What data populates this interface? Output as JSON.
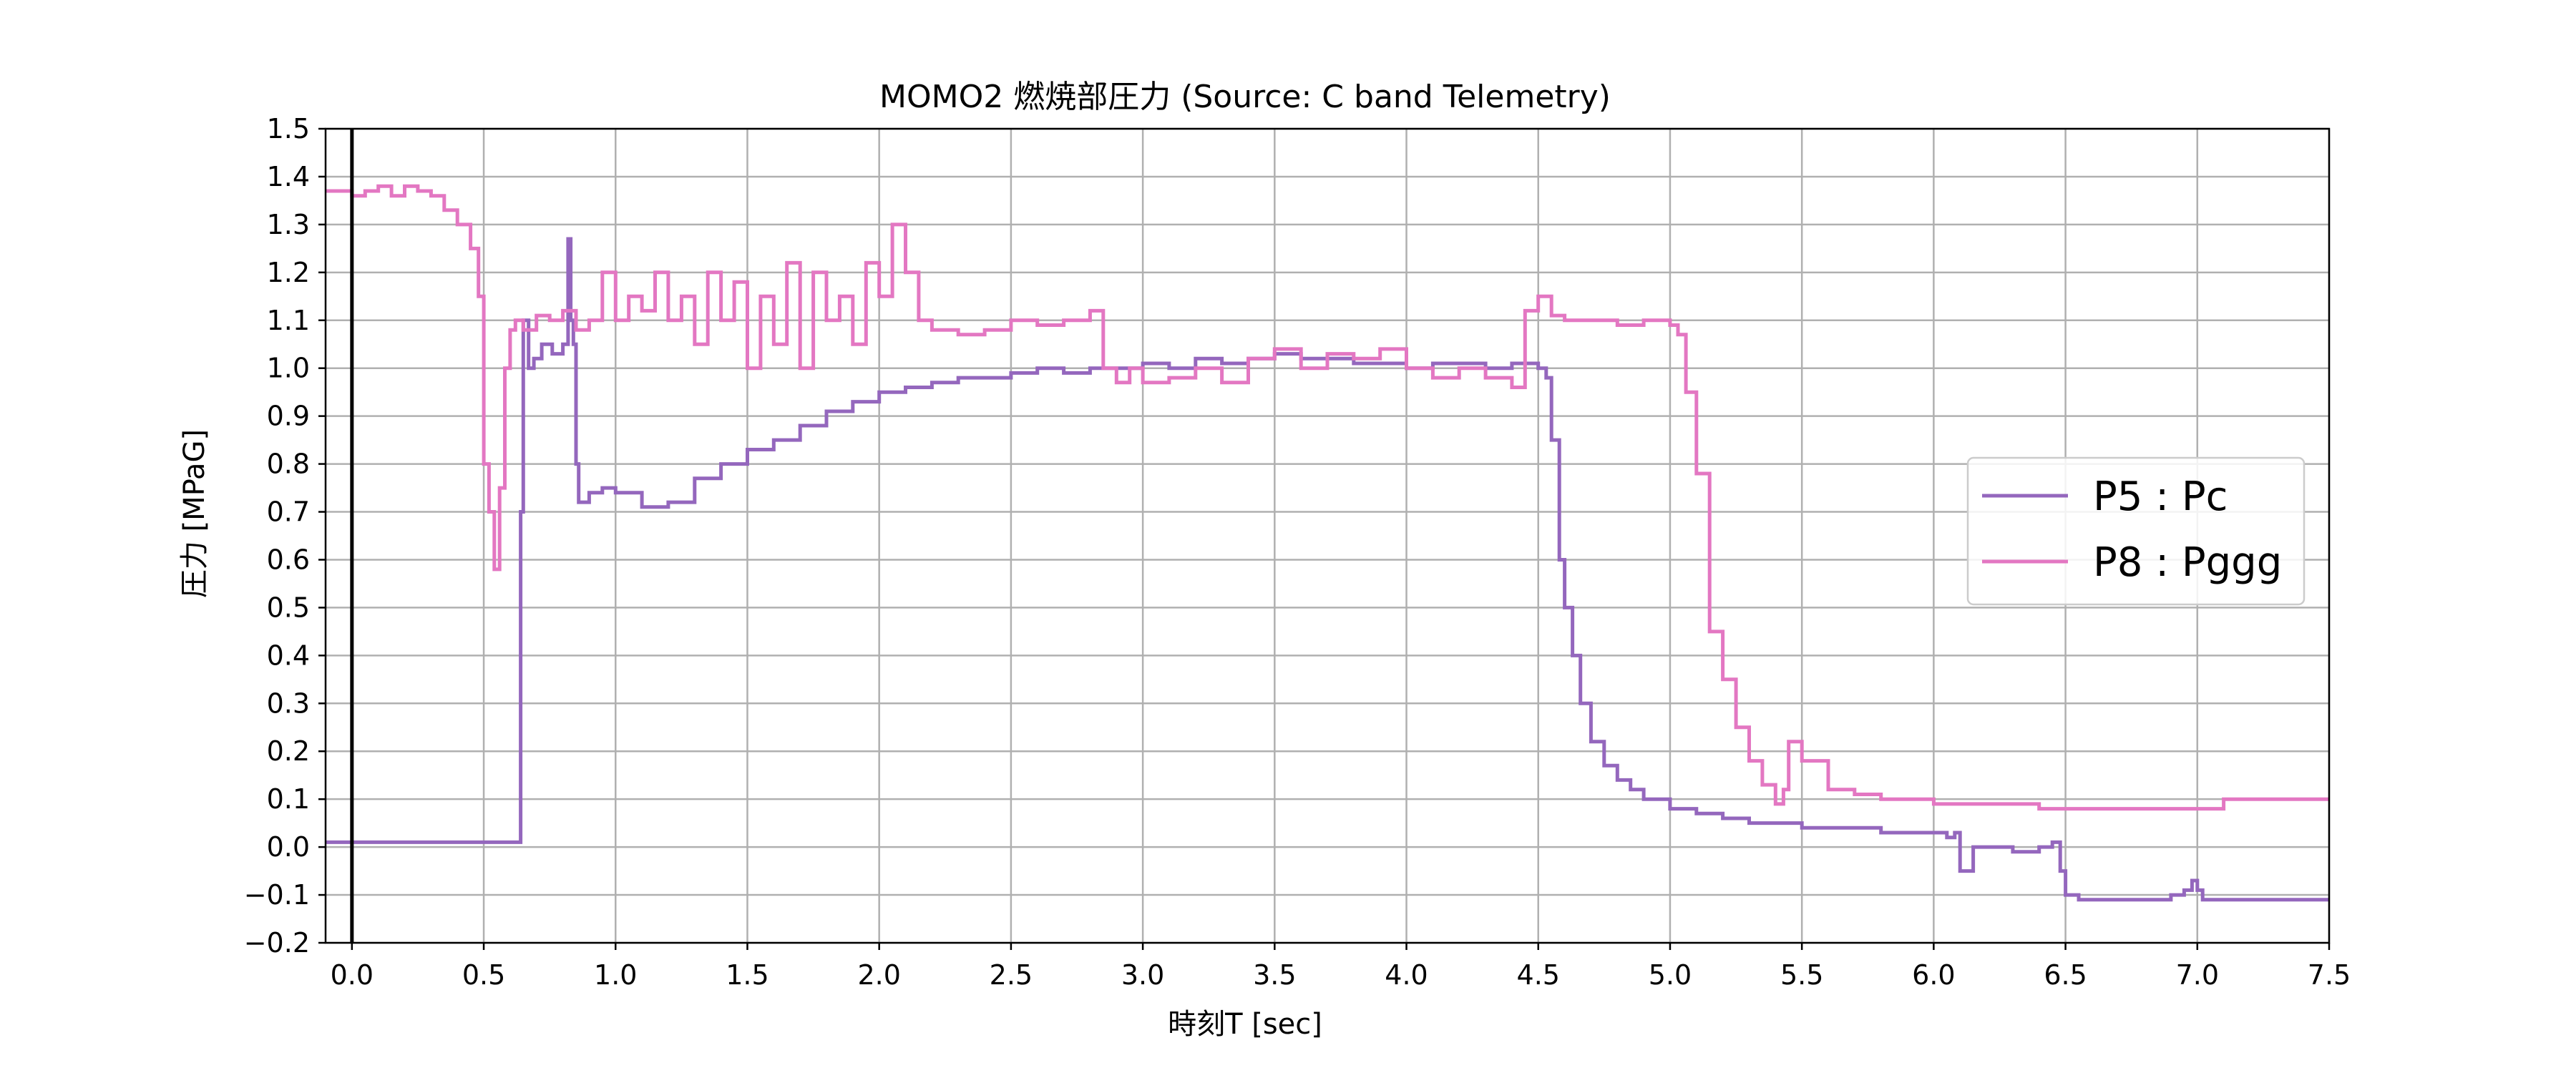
{
  "chart_data": {
    "type": "line",
    "title": "MOMO2 燃焼部圧力 (Source: C band Telemetry)",
    "xlabel": "時刻T [sec]",
    "ylabel": "圧力 [MPaG]",
    "xlim": [
      -0.1,
      7.5
    ],
    "ylim": [
      -0.2,
      1.5
    ],
    "xticks": [
      "0.0",
      "0.5",
      "1.0",
      "1.5",
      "2.0",
      "2.5",
      "3.0",
      "3.5",
      "4.0",
      "4.5",
      "5.0",
      "5.5",
      "6.0",
      "6.5",
      "7.0",
      "7.5"
    ],
    "yticks": [
      "−0.2",
      "−0.1",
      "0.0",
      "0.1",
      "0.2",
      "0.3",
      "0.4",
      "0.5",
      "0.6",
      "0.7",
      "0.8",
      "0.9",
      "1.0",
      "1.1",
      "1.2",
      "1.3",
      "1.4",
      "1.5"
    ],
    "grid": true,
    "vline_x": 0.0,
    "legend_position": "center-right",
    "series": [
      {
        "name": "P5 : Pc",
        "color": "#9467bd",
        "x": [
          -0.1,
          0.6,
          0.63,
          0.64,
          0.65,
          0.67,
          0.69,
          0.72,
          0.76,
          0.8,
          0.82,
          0.83,
          0.84,
          0.85,
          0.86,
          0.9,
          0.95,
          1.0,
          1.1,
          1.2,
          1.3,
          1.4,
          1.5,
          1.6,
          1.7,
          1.8,
          1.9,
          2.0,
          2.1,
          2.2,
          2.3,
          2.4,
          2.5,
          2.6,
          2.7,
          2.8,
          2.9,
          3.0,
          3.1,
          3.2,
          3.3,
          3.4,
          3.5,
          3.6,
          3.7,
          3.8,
          3.9,
          4.0,
          4.1,
          4.2,
          4.3,
          4.4,
          4.5,
          4.53,
          4.55,
          4.58,
          4.6,
          4.63,
          4.66,
          4.7,
          4.75,
          4.8,
          4.85,
          4.9,
          5.0,
          5.1,
          5.2,
          5.3,
          5.4,
          5.5,
          5.6,
          5.7,
          5.8,
          5.9,
          6.0,
          6.05,
          6.08,
          6.1,
          6.15,
          6.2,
          6.3,
          6.4,
          6.45,
          6.48,
          6.5,
          6.55,
          6.6,
          6.7,
          6.8,
          6.9,
          6.95,
          6.98,
          7.0,
          7.02,
          7.1,
          7.5
        ],
        "y": [
          0.01,
          0.01,
          0.01,
          0.7,
          1.1,
          1.0,
          1.02,
          1.05,
          1.03,
          1.05,
          1.27,
          1.1,
          1.05,
          0.8,
          0.72,
          0.74,
          0.75,
          0.74,
          0.71,
          0.72,
          0.77,
          0.8,
          0.83,
          0.85,
          0.88,
          0.91,
          0.93,
          0.95,
          0.96,
          0.97,
          0.98,
          0.98,
          0.99,
          1.0,
          0.99,
          1.0,
          1.0,
          1.01,
          1.0,
          1.02,
          1.01,
          1.02,
          1.03,
          1.02,
          1.02,
          1.01,
          1.01,
          1.0,
          1.01,
          1.01,
          1.0,
          1.01,
          1.0,
          0.98,
          0.85,
          0.6,
          0.5,
          0.4,
          0.3,
          0.22,
          0.17,
          0.14,
          0.12,
          0.1,
          0.08,
          0.07,
          0.06,
          0.05,
          0.05,
          0.04,
          0.04,
          0.04,
          0.03,
          0.03,
          0.03,
          0.02,
          0.03,
          -0.05,
          0.0,
          0.0,
          -0.01,
          0.0,
          0.01,
          -0.05,
          -0.1,
          -0.11,
          -0.11,
          -0.11,
          -0.11,
          -0.1,
          -0.09,
          -0.07,
          -0.09,
          -0.11,
          -0.11,
          -0.11
        ]
      },
      {
        "name": "P8 : Pggg",
        "color": "#e377c2",
        "x": [
          -0.1,
          0.0,
          0.05,
          0.1,
          0.15,
          0.2,
          0.25,
          0.3,
          0.35,
          0.4,
          0.45,
          0.48,
          0.5,
          0.52,
          0.54,
          0.56,
          0.58,
          0.6,
          0.62,
          0.65,
          0.7,
          0.75,
          0.8,
          0.85,
          0.9,
          0.95,
          1.0,
          1.05,
          1.1,
          1.15,
          1.2,
          1.25,
          1.3,
          1.35,
          1.4,
          1.45,
          1.5,
          1.55,
          1.6,
          1.65,
          1.7,
          1.75,
          1.8,
          1.85,
          1.9,
          1.95,
          2.0,
          2.05,
          2.1,
          2.15,
          2.2,
          2.3,
          2.4,
          2.5,
          2.6,
          2.7,
          2.8,
          2.85,
          2.9,
          2.95,
          3.0,
          3.1,
          3.2,
          3.3,
          3.4,
          3.5,
          3.6,
          3.7,
          3.8,
          3.9,
          4.0,
          4.1,
          4.2,
          4.3,
          4.4,
          4.45,
          4.5,
          4.55,
          4.6,
          4.7,
          4.8,
          4.9,
          5.0,
          5.03,
          5.06,
          5.1,
          5.15,
          5.2,
          5.25,
          5.3,
          5.35,
          5.4,
          5.43,
          5.45,
          5.5,
          5.6,
          5.7,
          5.8,
          5.9,
          6.0,
          6.2,
          6.4,
          6.6,
          6.8,
          7.0,
          7.1,
          7.5
        ],
        "y": [
          1.37,
          1.36,
          1.37,
          1.38,
          1.36,
          1.38,
          1.37,
          1.36,
          1.33,
          1.3,
          1.25,
          1.15,
          0.8,
          0.7,
          0.58,
          0.75,
          1.0,
          1.08,
          1.1,
          1.08,
          1.11,
          1.1,
          1.12,
          1.08,
          1.1,
          1.2,
          1.1,
          1.15,
          1.12,
          1.2,
          1.1,
          1.15,
          1.05,
          1.2,
          1.1,
          1.18,
          1.0,
          1.15,
          1.05,
          1.22,
          1.0,
          1.2,
          1.1,
          1.15,
          1.05,
          1.22,
          1.15,
          1.3,
          1.2,
          1.1,
          1.08,
          1.07,
          1.08,
          1.1,
          1.09,
          1.1,
          1.12,
          1.0,
          0.97,
          1.0,
          0.97,
          0.98,
          1.0,
          0.97,
          1.02,
          1.04,
          1.0,
          1.03,
          1.02,
          1.04,
          1.0,
          0.98,
          1.0,
          0.98,
          0.96,
          1.12,
          1.15,
          1.11,
          1.1,
          1.1,
          1.09,
          1.1,
          1.09,
          1.07,
          0.95,
          0.78,
          0.45,
          0.35,
          0.25,
          0.18,
          0.13,
          0.09,
          0.12,
          0.22,
          0.18,
          0.12,
          0.11,
          0.1,
          0.1,
          0.09,
          0.09,
          0.08,
          0.08,
          0.08,
          0.08,
          0.1,
          0.1
        ]
      }
    ]
  }
}
